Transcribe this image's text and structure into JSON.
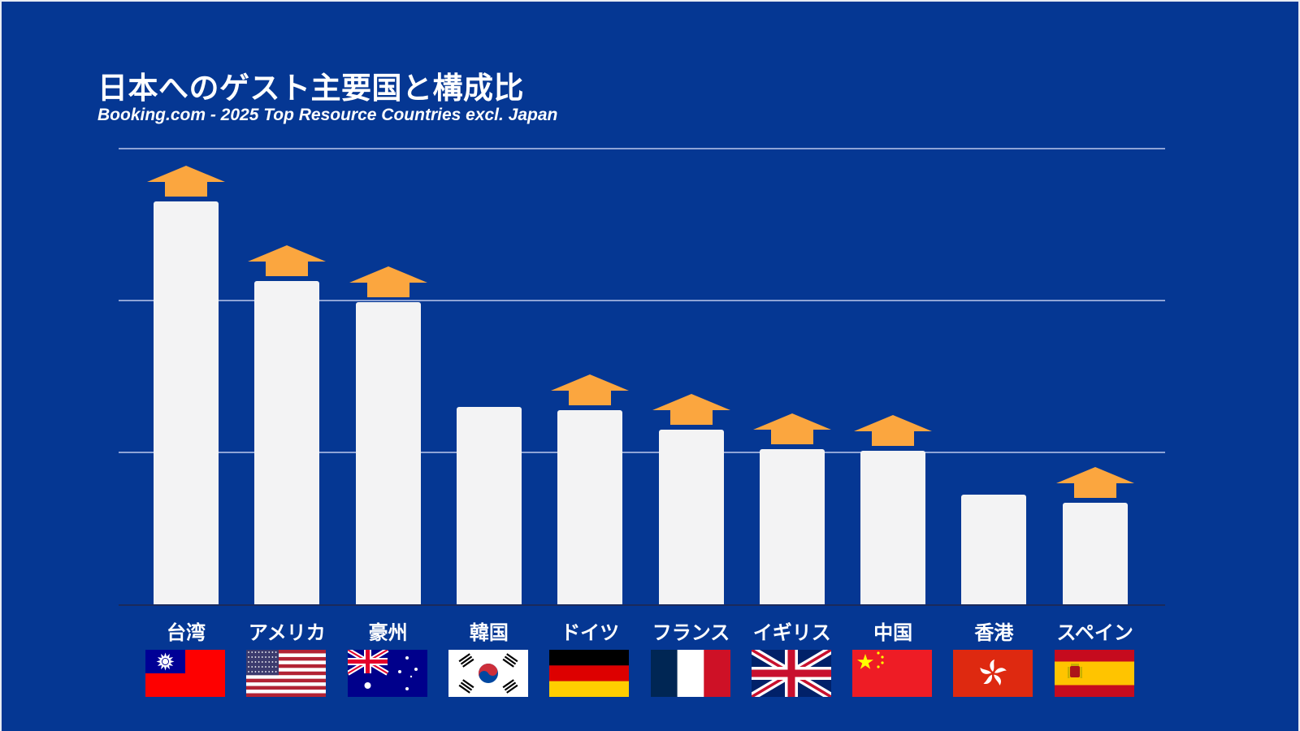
{
  "header": {
    "title": "日本へのゲスト主要国と構成比",
    "subtitle": "Booking.com - 2025 Top Resource Countries excl. Japan"
  },
  "colors": {
    "background": "#053793",
    "bar": "#f3f3f4",
    "arrow": "#fba63f",
    "gridline": "#8ea3d6"
  },
  "chart_data": {
    "type": "bar",
    "title": "日本へのゲスト主要国と構成比",
    "subtitle": "Booking.com - 2025 Top Resource Countries excl. Japan",
    "xlabel": "",
    "ylabel": "",
    "y_axis_labels_shown": false,
    "grid": true,
    "gridline_levels": [
      1,
      2,
      3
    ],
    "ylim": [
      0,
      3
    ],
    "note": "No numeric axis labels shown; values are relative heights in gridline units (3 gridlines above baseline).",
    "categories": [
      "台湾",
      "アメリカ",
      "豪州",
      "韓国",
      "ドイツ",
      "フランス",
      "イギリス",
      "中国",
      "香港",
      "スペイン"
    ],
    "values": [
      2.65,
      2.13,
      1.99,
      1.3,
      1.28,
      1.15,
      1.02,
      1.01,
      0.72,
      0.67
    ],
    "increase_arrow": [
      true,
      true,
      true,
      false,
      true,
      true,
      true,
      true,
      false,
      true
    ],
    "flags": [
      "taiwan-flag",
      "usa-flag",
      "australia-flag",
      "korea-flag",
      "germany-flag",
      "france-flag",
      "uk-flag",
      "china-flag",
      "hongkong-flag",
      "spain-flag"
    ],
    "legend": []
  }
}
